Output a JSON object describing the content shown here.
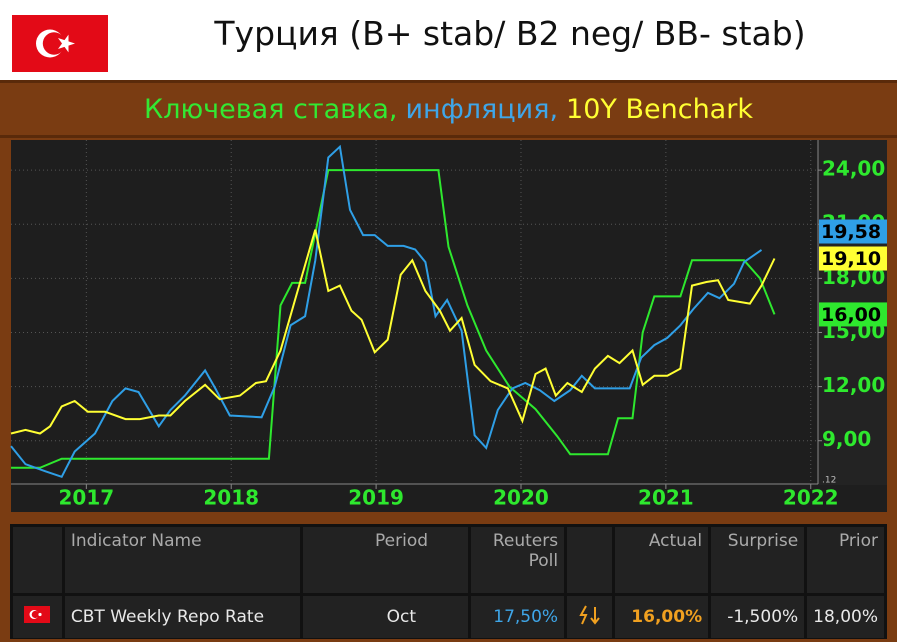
{
  "header": {
    "title": "Турция (B+ stab/ B2 neg/ BB- stab)",
    "subtitle": [
      "Ключевая ставка,",
      "инфляция,",
      "10Y Benchark"
    ]
  },
  "chart_data": {
    "type": "line",
    "xlim": [
      2016.48,
      2022.05
    ],
    "xticks": [
      2017,
      2018,
      2019,
      2020,
      2021,
      2022
    ],
    "ylim": [
      6.6,
      25.67
    ],
    "yticks": [
      {
        "value": 9,
        "label": "9,00"
      },
      {
        "value": 12,
        "label": "12,00"
      },
      {
        "value": 15,
        "label": "15,00"
      },
      {
        "value": 18,
        "label": "18,00"
      },
      {
        "value": 21,
        "label": "21,00"
      },
      {
        "value": 24,
        "label": "24,00"
      }
    ],
    "grid": true,
    "annotation": ".12",
    "series": [
      {
        "name": "Ключевая ставка",
        "color": "#2ee82e",
        "last_label": "16,00",
        "x": [
          2016.48,
          2016.68,
          2016.83,
          2018.26,
          2018.34,
          2018.42,
          2018.51,
          2018.67,
          2019.43,
          2019.5,
          2019.63,
          2019.76,
          2019.92,
          2020.1,
          2020.25,
          2020.34,
          2020.6,
          2020.67,
          2020.77,
          2020.84,
          2020.92,
          2021.1,
          2021.18,
          2021.54,
          2021.65,
          2021.75
        ],
        "values": [
          7.5,
          7.5,
          8.0,
          8.0,
          16.5,
          17.75,
          17.75,
          24.0,
          24.0,
          19.75,
          16.5,
          14.0,
          12.0,
          10.75,
          9.25,
          8.25,
          8.25,
          10.25,
          10.25,
          15.0,
          17.0,
          17.0,
          19.0,
          19.0,
          18.0,
          16.0
        ]
      },
      {
        "name": "инфляция",
        "color": "#2f9fe6",
        "last_label": "19,58",
        "x": [
          2016.48,
          2016.58,
          2016.72,
          2016.83,
          2016.92,
          2017.06,
          2017.18,
          2017.27,
          2017.36,
          2017.5,
          2017.58,
          2017.68,
          2017.82,
          2017.89,
          2017.99,
          2018.21,
          2018.3,
          2018.41,
          2018.51,
          2018.58,
          2018.67,
          2018.75,
          2018.82,
          2018.91,
          2018.99,
          2019.08,
          2019.19,
          2019.27,
          2019.34,
          2019.41,
          2019.49,
          2019.59,
          2019.68,
          2019.76,
          2019.84,
          2019.94,
          2020.03,
          2020.13,
          2020.23,
          2020.34,
          2020.42,
          2020.51,
          2020.65,
          2020.75,
          2020.83,
          2020.92,
          2021.01,
          2021.1,
          2021.19,
          2021.29,
          2021.37,
          2021.47,
          2021.54,
          2021.66
        ],
        "values": [
          8.7,
          7.7,
          7.3,
          7.0,
          8.4,
          9.4,
          11.2,
          11.9,
          11.7,
          9.8,
          10.7,
          11.5,
          12.9,
          11.9,
          10.4,
          10.3,
          12.0,
          15.4,
          15.9,
          19.0,
          24.7,
          25.3,
          21.8,
          20.4,
          20.4,
          19.8,
          19.8,
          19.6,
          18.9,
          15.9,
          16.8,
          15.1,
          9.3,
          8.6,
          10.7,
          11.9,
          12.2,
          11.8,
          11.2,
          11.8,
          12.6,
          11.9,
          11.9,
          11.9,
          13.6,
          14.3,
          14.7,
          15.4,
          16.3,
          17.2,
          16.9,
          17.7,
          18.9,
          19.58
        ]
      },
      {
        "name": "10Y Benchark",
        "color": "#ffff33",
        "last_label": "19,10",
        "x": [
          2016.48,
          2016.58,
          2016.68,
          2016.75,
          2016.83,
          2016.92,
          2017.01,
          2017.13,
          2017.27,
          2017.37,
          2017.5,
          2017.58,
          2017.68,
          2017.82,
          2017.92,
          2018.06,
          2018.17,
          2018.24,
          2018.34,
          2018.44,
          2018.58,
          2018.67,
          2018.75,
          2018.83,
          2018.9,
          2018.99,
          2019.08,
          2019.17,
          2019.25,
          2019.34,
          2019.44,
          2019.51,
          2019.59,
          2019.68,
          2019.79,
          2019.91,
          2020.01,
          2020.1,
          2020.17,
          2020.24,
          2020.32,
          2020.42,
          2020.51,
          2020.6,
          2020.68,
          2020.77,
          2020.84,
          2020.92,
          2021.01,
          2021.1,
          2021.18,
          2021.28,
          2021.36,
          2021.43,
          2021.58,
          2021.66,
          2021.75
        ],
        "values": [
          9.4,
          9.6,
          9.4,
          9.8,
          10.9,
          11.2,
          10.6,
          10.6,
          10.2,
          10.2,
          10.4,
          10.4,
          11.2,
          12.1,
          11.3,
          11.5,
          12.2,
          12.3,
          14.0,
          16.8,
          20.7,
          17.3,
          17.6,
          16.2,
          15.7,
          13.9,
          14.6,
          18.2,
          19.0,
          17.3,
          16.2,
          15.1,
          15.8,
          13.2,
          12.3,
          11.9,
          10.1,
          12.7,
          13.0,
          11.5,
          12.2,
          11.7,
          13.0,
          13.7,
          13.3,
          14.0,
          12.1,
          12.6,
          12.6,
          13.0,
          17.6,
          17.8,
          17.9,
          16.8,
          16.6,
          17.6,
          19.1
        ]
      }
    ]
  },
  "table": {
    "headers": [
      "Indicator Name",
      "Period",
      "Reuters Poll",
      "Actual",
      "Surprise",
      "Prior"
    ],
    "rows": [
      [
        "CBT Weekly Repo Rate",
        "Oct",
        "17,50%",
        "16,00%",
        "-1,500%",
        "18,00%"
      ]
    ]
  }
}
